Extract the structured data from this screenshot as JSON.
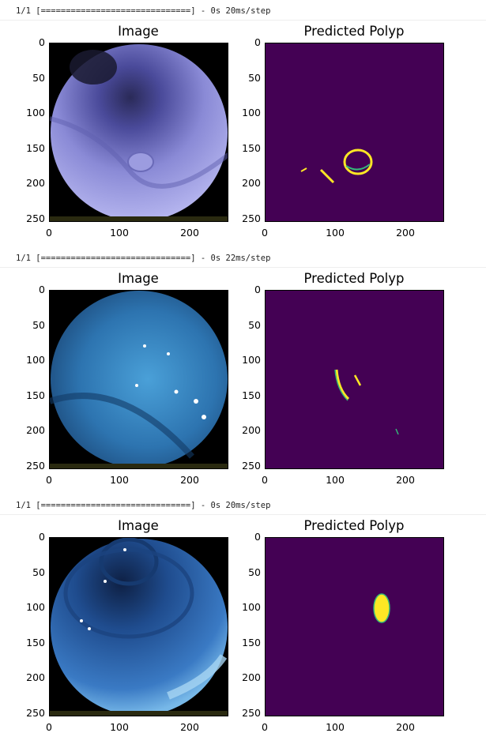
{
  "outputs": [
    {
      "log": "1/1 [==============================] - 0s 20ms/step",
      "left_title": "Image",
      "right_title": "Predicted Polyp",
      "yticks": [
        "0",
        "50",
        "100",
        "150",
        "200",
        "250"
      ],
      "xticks": [
        "0",
        "100",
        "200"
      ]
    },
    {
      "log": "1/1 [==============================] - 0s 22ms/step",
      "left_title": "Image",
      "right_title": "Predicted Polyp",
      "yticks": [
        "0",
        "50",
        "100",
        "150",
        "200",
        "250"
      ],
      "xticks": [
        "0",
        "100",
        "200"
      ]
    },
    {
      "log": "1/1 [==============================] - 0s 20ms/step",
      "left_title": "Image",
      "right_title": "Predicted Polyp",
      "yticks": [
        "0",
        "50",
        "100",
        "150",
        "200",
        "250"
      ],
      "xticks": [
        "0",
        "100",
        "200"
      ]
    }
  ],
  "colors": {
    "mask_bg": "#440154",
    "mask_fg": "#fde725",
    "mask_edge": "#35b779"
  }
}
